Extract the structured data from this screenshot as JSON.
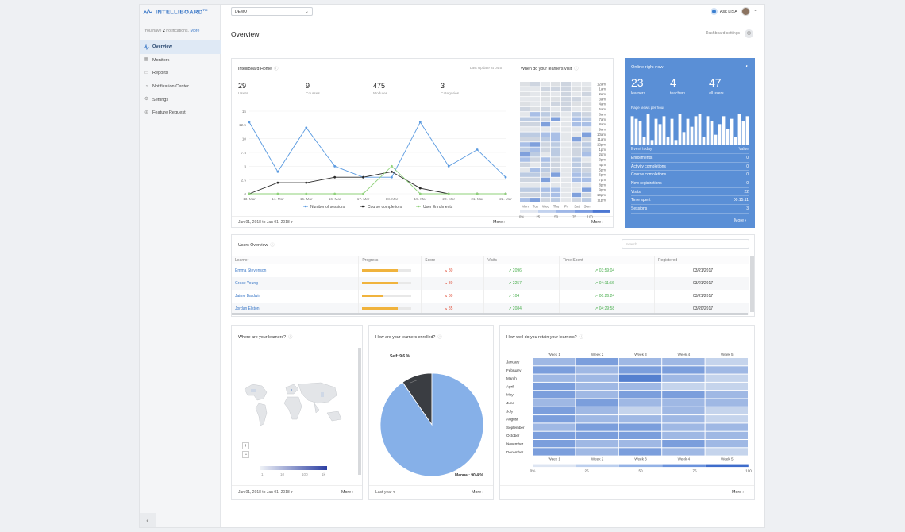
{
  "app": {
    "brand": "INTELLIBOARD",
    "brand_tm": "TM"
  },
  "notifications": {
    "prefix": "You have",
    "count": "2",
    "suffix": "notifications.",
    "more": "More"
  },
  "nav": [
    {
      "label": "Overview",
      "icon": "activity-icon",
      "active": true
    },
    {
      "label": "Monitors",
      "icon": "monitor-icon"
    },
    {
      "label": "Reports",
      "icon": "folder-icon"
    },
    {
      "label": "Notification Center",
      "icon": "bell-icon"
    },
    {
      "label": "Settings",
      "icon": "gear-icon"
    },
    {
      "label": "Feature Request",
      "icon": "plus-circle-icon"
    }
  ],
  "topbar": {
    "site_select": "DEMO",
    "ask_lisa": "Ask LISA"
  },
  "page": {
    "title": "Overview",
    "dashboard_settings": "Dashboard settings"
  },
  "home": {
    "title": "IntelliBoard Home",
    "last_update": "Last Update at 04:57",
    "stats": [
      {
        "value": "29",
        "label": "Users"
      },
      {
        "value": "9",
        "label": "Courses"
      },
      {
        "value": "475",
        "label": "Modules"
      },
      {
        "value": "3",
        "label": "Categories"
      }
    ],
    "date_range": "Jan 01, 2018 to Jan 01, 2018 ▾",
    "more": "More"
  },
  "chart_data": [
    {
      "type": "line",
      "x": [
        "13. Mar",
        "14. Mar",
        "15. Mar",
        "16. Mar",
        "17. Mar",
        "18. Mar",
        "19. Mar",
        "20. Mar",
        "21. Mar",
        "22. Mar"
      ],
      "ylim": [
        0,
        15
      ],
      "yticks": [
        "0",
        "2.5",
        "5",
        "7.5",
        "10",
        "12.5",
        "15"
      ],
      "series": [
        {
          "name": "Number of sessions",
          "color": "#5a9ae0",
          "values": [
            13,
            4,
            12,
            5,
            3,
            3,
            13,
            5,
            8,
            3
          ]
        },
        {
          "name": "Course completions",
          "color": "#2b2b2b",
          "values": [
            0,
            2,
            2,
            3,
            3,
            4,
            1,
            0,
            0,
            0
          ]
        },
        {
          "name": "User Enrolments",
          "color": "#8fd17a",
          "values": [
            0,
            0,
            0,
            0,
            0,
            5,
            0,
            0,
            0,
            0
          ]
        }
      ]
    },
    {
      "type": "heatmap",
      "title": "When do your learners visit",
      "columns": [
        "Mon",
        "Tue",
        "Wed",
        "Thu",
        "Fri",
        "Sat",
        "Sun"
      ],
      "rows": [
        "12am",
        "1am",
        "2am",
        "3am",
        "4am",
        "5am",
        "6am",
        "7am",
        "8am",
        "9am",
        "10am",
        "11am",
        "12pm",
        "1pm",
        "2pm",
        "3pm",
        "4pm",
        "5pm",
        "6pm",
        "7pm",
        "8pm",
        "9pm",
        "10pm",
        "11pm"
      ],
      "scale": [
        "0%",
        "25",
        "50",
        "75",
        "100"
      ]
    },
    {
      "type": "bar",
      "title": "Page views per hour",
      "values": [
        55,
        50,
        45,
        15,
        60,
        10,
        50,
        40,
        55,
        15,
        50,
        10,
        60,
        25,
        50,
        35,
        55,
        60,
        15,
        55,
        45,
        20,
        40,
        55,
        30,
        50,
        15,
        60,
        45,
        55
      ]
    },
    {
      "type": "pie",
      "title": "How are your learners enrolled?",
      "slices": [
        {
          "label": "Self",
          "value": 9.6,
          "color": "#3a3d42"
        },
        {
          "label": "Manual",
          "value": 90.4,
          "color": "#86b0e8"
        }
      ]
    },
    {
      "type": "heatmap",
      "title": "How well do you retain your learners?",
      "columns": [
        "Week 1",
        "Week 2",
        "Week 3",
        "Week 4",
        "Week 5"
      ],
      "rows": [
        "January",
        "February",
        "March",
        "April",
        "May",
        "June",
        "July",
        "August",
        "September",
        "October",
        "November",
        "December"
      ],
      "scale": [
        "0%",
        "25",
        "50",
        "75",
        "100"
      ]
    }
  ],
  "visit_heatmap": {
    "more": "More"
  },
  "online": {
    "title": "Online right now",
    "stats": [
      {
        "value": "23",
        "label": "learners"
      },
      {
        "value": "4",
        "label": "teachers"
      },
      {
        "value": "47",
        "label": "all users"
      }
    ],
    "pv_label": "Page views per hour",
    "event_header": "Event today",
    "value_header": "Value",
    "events": [
      {
        "label": "Enrollments",
        "value": "0"
      },
      {
        "label": "Activity completions",
        "value": "0"
      },
      {
        "label": "Course completions",
        "value": "0"
      },
      {
        "label": "New registrations",
        "value": "0"
      },
      {
        "label": "Visits",
        "value": "22"
      },
      {
        "label": "Time spent",
        "value": "00:15:11"
      },
      {
        "label": "Sessions",
        "value": "3"
      }
    ],
    "more": "More"
  },
  "users_overview": {
    "title": "Users Overview",
    "search_placeholder": "Search",
    "columns": [
      "Learner",
      "Progress",
      "Score",
      "Visits",
      "Time Spent",
      "Registered"
    ],
    "rows": [
      {
        "name": "Emma Stevenson",
        "progress": 0.72,
        "score": "80",
        "visits": "2096",
        "time": "03:59:04",
        "registered": "03/21/2017"
      },
      {
        "name": "Grace Young",
        "progress": 0.72,
        "score": "80",
        "visits": "2257",
        "time": "04:11:56",
        "registered": "03/21/2017"
      },
      {
        "name": "Jaime Baldwin",
        "progress": 0.42,
        "score": "80",
        "visits": "104",
        "time": "00:26:24",
        "registered": "03/21/2017"
      },
      {
        "name": "Jordan Elston",
        "progress": 0.72,
        "score": "85",
        "visits": "2084",
        "time": "04:29:58",
        "registered": "03/20/2017"
      }
    ]
  },
  "where": {
    "title": "Where are your learners?",
    "zoom_in": "+",
    "zoom_out": "−",
    "scale": [
      "1",
      "10",
      "100",
      "1k"
    ],
    "date_range": "Jan 01, 2018 to Jan 01, 2018 ▾",
    "more": "More"
  },
  "enrolled": {
    "title": "How are your learners enrolled?",
    "self_label": "Self: 9.6 %",
    "manual_label": "Manual: 90.4 %",
    "period": "Last year ▾",
    "more": "More"
  },
  "retain": {
    "title": "How well do you retain your learners?",
    "more": "More"
  },
  "colors": {
    "accent": "#3b78c7",
    "online_bg": "#5a8fd6",
    "progress": "#f0b33d",
    "up": "#4caf50",
    "down": "#e0533d"
  }
}
